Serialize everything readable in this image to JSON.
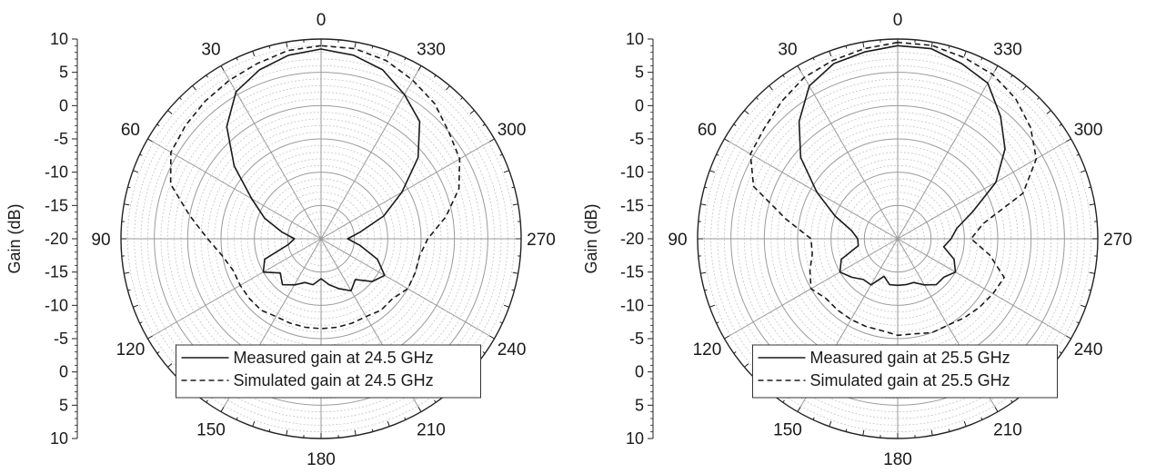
{
  "chart_data": [
    {
      "type": "polar",
      "angle_labels": [
        "0",
        "30",
        "60",
        "90",
        "120",
        "150",
        "180",
        "210",
        "240",
        "270",
        "300",
        "330"
      ],
      "angle_values": [
        0,
        30,
        60,
        90,
        120,
        150,
        180,
        210,
        240,
        270,
        300,
        330
      ],
      "angle_direction": "clockwise-labels-counterclockwise (0 at top, 90 at left, 270 at right)",
      "radial_axis": {
        "label": "Gain (dB)",
        "range": [
          -20,
          10
        ],
        "tick_labels": [
          "10",
          "5",
          "0",
          "-5",
          "-10",
          "-15",
          "-20",
          "-15",
          "-10",
          "-5",
          "0",
          "5",
          "10"
        ]
      },
      "grid": true,
      "legend": "bottom-center",
      "series": [
        {
          "name": "Measured gain at 24.5 GHz",
          "style": "solid",
          "theta": [
            0,
            10,
            20,
            30,
            40,
            50,
            60,
            70,
            80,
            90,
            100,
            110,
            120,
            130,
            140,
            150,
            160,
            170,
            180,
            190,
            200,
            210,
            220,
            230,
            240,
            250,
            260,
            270,
            280,
            290,
            300,
            310,
            320,
            330,
            340,
            350
          ],
          "r": [
            8.5,
            8,
            7,
            5.5,
            2,
            -3,
            -8,
            -11,
            -14,
            -16,
            -15,
            -11,
            -10,
            -12,
            -11,
            -12,
            -13,
            -13,
            -14,
            -13,
            -12,
            -11,
            -12,
            -10,
            -9,
            -11,
            -14,
            -16,
            -14,
            -10,
            -6,
            -1,
            3,
            5,
            7,
            8
          ]
        },
        {
          "name": "Simulated gain at 24.5 GHz",
          "style": "dashed",
          "theta": [
            0,
            10,
            20,
            30,
            40,
            50,
            60,
            70,
            80,
            90,
            100,
            110,
            120,
            130,
            140,
            150,
            160,
            170,
            180,
            190,
            200,
            210,
            220,
            230,
            240,
            250,
            260,
            270,
            280,
            290,
            300,
            310,
            320,
            330,
            340,
            350
          ],
          "r": [
            9,
            8.7,
            8,
            7.5,
            7,
            6.5,
            6,
            4,
            0,
            -3,
            -5,
            -6,
            -6,
            -6,
            -6,
            -6.5,
            -6.5,
            -6.5,
            -6.5,
            -6.5,
            -6.5,
            -6.5,
            -6,
            -6,
            -5,
            -5,
            -5,
            -4,
            -1,
            2,
            4,
            5,
            6.5,
            7.5,
            8.5,
            9
          ]
        }
      ]
    },
    {
      "type": "polar",
      "angle_labels": [
        "0",
        "30",
        "60",
        "90",
        "120",
        "150",
        "180",
        "210",
        "240",
        "270",
        "300",
        "330"
      ],
      "angle_values": [
        0,
        30,
        60,
        90,
        120,
        150,
        180,
        210,
        240,
        270,
        300,
        330
      ],
      "radial_axis": {
        "label": "Gain (dB)",
        "range": [
          -20,
          10
        ],
        "tick_labels": [
          "10",
          "5",
          "0",
          "-5",
          "-10",
          "-15",
          "-20",
          "-15",
          "-10",
          "-5",
          "0",
          "5",
          "10"
        ]
      },
      "grid": true,
      "legend": "bottom-center",
      "series": [
        {
          "name": "Measured gain at 25.5 GHz",
          "style": "solid",
          "theta": [
            0,
            10,
            20,
            30,
            40,
            50,
            60,
            70,
            80,
            90,
            100,
            110,
            120,
            130,
            140,
            150,
            160,
            170,
            180,
            190,
            200,
            210,
            220,
            230,
            240,
            250,
            260,
            270,
            280,
            290,
            300,
            310,
            320,
            330,
            340,
            350
          ],
          "r": [
            9,
            8.5,
            8,
            6.5,
            3,
            -1,
            -6,
            -10,
            -13,
            -14,
            -14,
            -11,
            -10,
            -11,
            -12,
            -12,
            -14,
            -13,
            -13,
            -13,
            -13,
            -12,
            -11,
            -11,
            -10,
            -11,
            -13,
            -12,
            -11,
            -8,
            -3,
            1,
            4,
            7,
            8,
            9
          ]
        },
        {
          "name": "Simulated gain at 25.5 GHz",
          "style": "dashed",
          "theta": [
            0,
            10,
            20,
            30,
            40,
            50,
            60,
            70,
            80,
            90,
            100,
            110,
            120,
            130,
            140,
            150,
            160,
            170,
            180,
            190,
            200,
            210,
            220,
            230,
            240,
            250,
            260,
            270,
            280,
            290,
            300,
            310,
            320,
            330,
            340,
            350
          ],
          "r": [
            9.5,
            9,
            8.5,
            8,
            7,
            6,
            5.5,
            3,
            -3,
            -7,
            -7,
            -6,
            -5,
            -6,
            -6,
            -6,
            -6,
            -6,
            -5.5,
            -5.5,
            -5,
            -5,
            -4.5,
            -4,
            -3.5,
            -3,
            -6,
            -9,
            -7,
            0,
            4,
            6,
            7.5,
            8.5,
            9,
            9.5
          ]
        }
      ]
    }
  ]
}
